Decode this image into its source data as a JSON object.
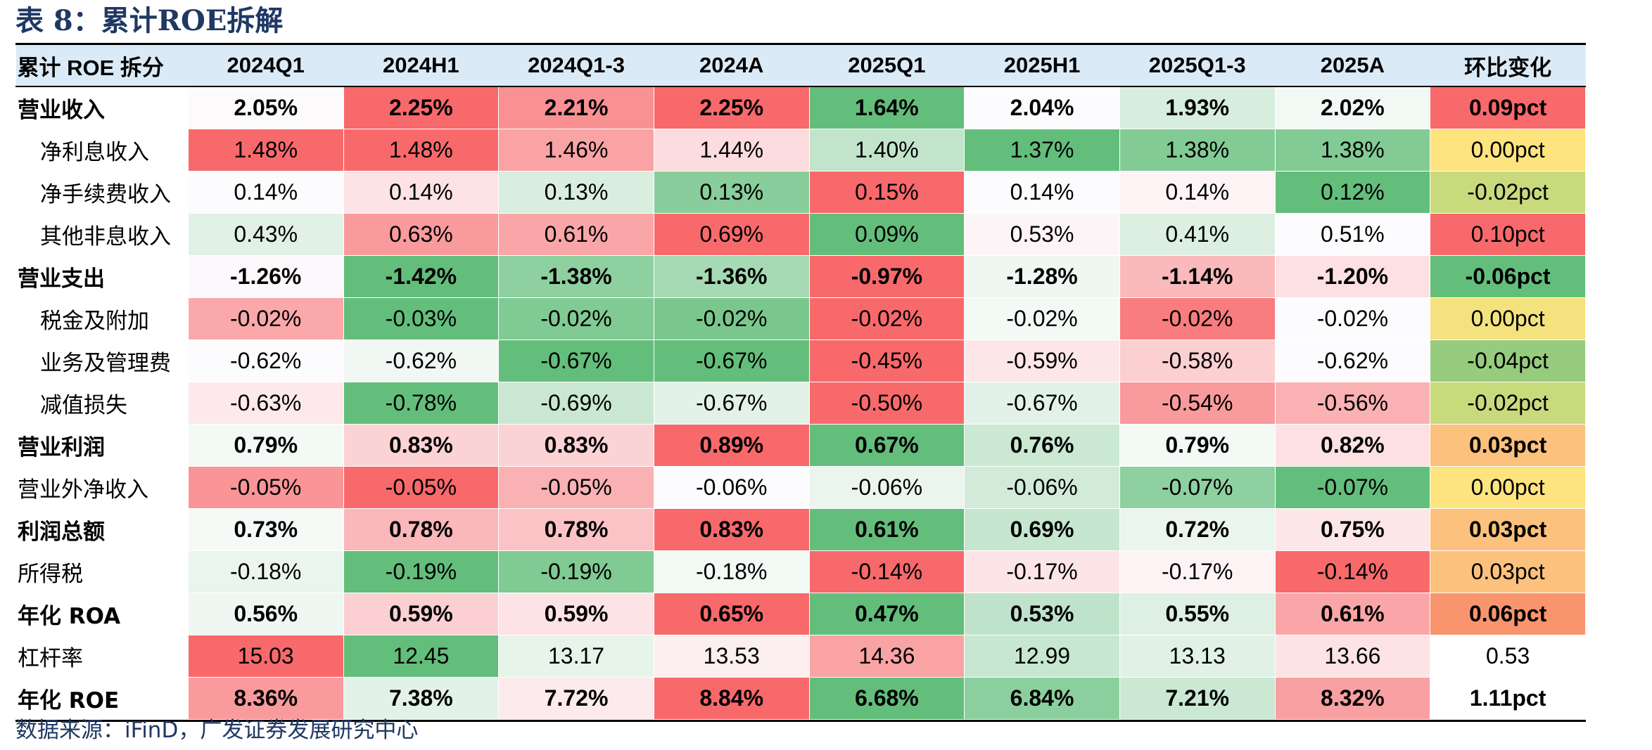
{
  "title": "表 8：累计ROE拆解",
  "header": [
    "累计 ROE 拆分",
    "2024Q1",
    "2024H1",
    "2024Q1-3",
    "2024A",
    "2025Q1",
    "2025H1",
    "2025Q1-3",
    "2025A",
    "环比变化"
  ],
  "rows": [
    {
      "label": "营业收入",
      "bold": true,
      "indent": false,
      "cells": [
        {
          "v": "2.05%",
          "c": "#fdfafb"
        },
        {
          "v": "2.25%",
          "c": "#f8696b"
        },
        {
          "v": "2.21%",
          "c": "#f99193"
        },
        {
          "v": "2.25%",
          "c": "#f8696b"
        },
        {
          "v": "1.64%",
          "c": "#63be7b"
        },
        {
          "v": "2.04%",
          "c": "#fcfcff"
        },
        {
          "v": "1.93%",
          "c": "#d7eddd"
        },
        {
          "v": "2.02%",
          "c": "#f2f8f4"
        },
        {
          "v": "0.09pct",
          "c": "#f8696b"
        }
      ]
    },
    {
      "label": "净利息收入",
      "bold": false,
      "indent": true,
      "cells": [
        {
          "v": "1.48%",
          "c": "#f8696b"
        },
        {
          "v": "1.48%",
          "c": "#f8696b"
        },
        {
          "v": "1.46%",
          "c": "#faa3a5"
        },
        {
          "v": "1.44%",
          "c": "#fcdcde"
        },
        {
          "v": "1.40%",
          "c": "#c1e4cb"
        },
        {
          "v": "1.37%",
          "c": "#63be7b"
        },
        {
          "v": "1.38%",
          "c": "#82cb95"
        },
        {
          "v": "1.38%",
          "c": "#82cb95"
        },
        {
          "v": "0.00pct",
          "c": "#fde47f"
        }
      ]
    },
    {
      "label": "净手续费收入",
      "bold": false,
      "indent": true,
      "cells": [
        {
          "v": "0.14%",
          "c": "#fcfcff"
        },
        {
          "v": "0.14%",
          "c": "#fde3e5"
        },
        {
          "v": "0.13%",
          "c": "#d9eedf"
        },
        {
          "v": "0.13%",
          "c": "#88cd9b"
        },
        {
          "v": "0.15%",
          "c": "#f8696b"
        },
        {
          "v": "0.14%",
          "c": "#fcfcff"
        },
        {
          "v": "0.14%",
          "c": "#fdf3f5"
        },
        {
          "v": "0.12%",
          "c": "#63be7b"
        },
        {
          "v": "-0.02pct",
          "c": "#c9da7d"
        }
      ]
    },
    {
      "label": "其他非息收入",
      "bold": false,
      "indent": true,
      "cells": [
        {
          "v": "0.43%",
          "c": "#e1f1e6"
        },
        {
          "v": "0.63%",
          "c": "#f99a9c"
        },
        {
          "v": "0.61%",
          "c": "#faa6a8"
        },
        {
          "v": "0.69%",
          "c": "#f8696b"
        },
        {
          "v": "0.09%",
          "c": "#63be7b"
        },
        {
          "v": "0.53%",
          "c": "#fcf4f6"
        },
        {
          "v": "0.41%",
          "c": "#dcefe1"
        },
        {
          "v": "0.51%",
          "c": "#fcfcff"
        },
        {
          "v": "0.10pct",
          "c": "#f8696b"
        }
      ]
    },
    {
      "label": "营业支出",
      "bold": true,
      "indent": false,
      "cells": [
        {
          "v": "-1.26%",
          "c": "#fcf8fb"
        },
        {
          "v": "-1.42%",
          "c": "#63be7b"
        },
        {
          "v": "-1.38%",
          "c": "#8ed0a0"
        },
        {
          "v": "-1.36%",
          "c": "#a6dab4"
        },
        {
          "v": "-0.97%",
          "c": "#f8696b"
        },
        {
          "v": "-1.28%",
          "c": "#eff7f2"
        },
        {
          "v": "-1.14%",
          "c": "#fab9bb"
        },
        {
          "v": "-1.20%",
          "c": "#fde0e2"
        },
        {
          "v": "-0.06pct",
          "c": "#63be7b"
        }
      ]
    },
    {
      "label": "税金及附加",
      "bold": false,
      "indent": true,
      "cells": [
        {
          "v": "-0.02%",
          "c": "#faa8aa"
        },
        {
          "v": "-0.03%",
          "c": "#63be7b"
        },
        {
          "v": "-0.02%",
          "c": "#80ca93"
        },
        {
          "v": "-0.02%",
          "c": "#7ac78e"
        },
        {
          "v": "-0.02%",
          "c": "#f8696b"
        },
        {
          "v": "-0.02%",
          "c": "#f3f9f5"
        },
        {
          "v": "-0.02%",
          "c": "#f97c7e"
        },
        {
          "v": "-0.02%",
          "c": "#fcfcff"
        },
        {
          "v": "0.00pct",
          "c": "#f4e27f"
        }
      ]
    },
    {
      "label": "业务及管理费",
      "bold": false,
      "indent": true,
      "cells": [
        {
          "v": "-0.62%",
          "c": "#fcfcff"
        },
        {
          "v": "-0.62%",
          "c": "#f1f8f3"
        },
        {
          "v": "-0.67%",
          "c": "#63be7b"
        },
        {
          "v": "-0.67%",
          "c": "#63be7b"
        },
        {
          "v": "-0.45%",
          "c": "#f8696b"
        },
        {
          "v": "-0.59%",
          "c": "#fde6e8"
        },
        {
          "v": "-0.58%",
          "c": "#fccfd1"
        },
        {
          "v": "-0.62%",
          "c": "#fcfcff"
        },
        {
          "v": "-0.04pct",
          "c": "#97cb7e"
        }
      ]
    },
    {
      "label": "减值损失",
      "bold": false,
      "indent": true,
      "cells": [
        {
          "v": "-0.63%",
          "c": "#fde9eb"
        },
        {
          "v": "-0.78%",
          "c": "#63be7b"
        },
        {
          "v": "-0.69%",
          "c": "#c9e7d1"
        },
        {
          "v": "-0.67%",
          "c": "#e3f2e8"
        },
        {
          "v": "-0.50%",
          "c": "#f8696b"
        },
        {
          "v": "-0.67%",
          "c": "#e3f2e8"
        },
        {
          "v": "-0.54%",
          "c": "#f99a9c"
        },
        {
          "v": "-0.56%",
          "c": "#fab1b3"
        },
        {
          "v": "-0.02pct",
          "c": "#c9da7d"
        }
      ]
    },
    {
      "label": "营业利润",
      "bold": true,
      "indent": false,
      "cells": [
        {
          "v": "0.79%",
          "c": "#f3f9f5"
        },
        {
          "v": "0.83%",
          "c": "#fcd3d5"
        },
        {
          "v": "0.83%",
          "c": "#fcd3d5"
        },
        {
          "v": "0.89%",
          "c": "#f8696b"
        },
        {
          "v": "0.67%",
          "c": "#63be7b"
        },
        {
          "v": "0.76%",
          "c": "#cae8d2"
        },
        {
          "v": "0.79%",
          "c": "#f3f9f5"
        },
        {
          "v": "0.82%",
          "c": "#fde0e2"
        },
        {
          "v": "0.03pct",
          "c": "#fcc17c"
        }
      ]
    },
    {
      "label": "营业外净收入",
      "bold": false,
      "indent": false,
      "cells": [
        {
          "v": "-0.05%",
          "c": "#f99597"
        },
        {
          "v": "-0.05%",
          "c": "#f8696b"
        },
        {
          "v": "-0.05%",
          "c": "#fab1b3"
        },
        {
          "v": "-0.06%",
          "c": "#fcfcff"
        },
        {
          "v": "-0.06%",
          "c": "#eaf5ee"
        },
        {
          "v": "-0.06%",
          "c": "#d2ebd9"
        },
        {
          "v": "-0.07%",
          "c": "#8ed0a0"
        },
        {
          "v": "-0.07%",
          "c": "#63be7b"
        },
        {
          "v": "0.00pct",
          "c": "#fde47f"
        }
      ]
    },
    {
      "label": "利润总额",
      "bold": true,
      "indent": false,
      "cells": [
        {
          "v": "0.73%",
          "c": "#f5faf7"
        },
        {
          "v": "0.78%",
          "c": "#fab8ba"
        },
        {
          "v": "0.78%",
          "c": "#fbc3c5"
        },
        {
          "v": "0.83%",
          "c": "#f8696b"
        },
        {
          "v": "0.61%",
          "c": "#63be7b"
        },
        {
          "v": "0.69%",
          "c": "#c6e6cf"
        },
        {
          "v": "0.72%",
          "c": "#eaf5ee"
        },
        {
          "v": "0.75%",
          "c": "#fde6e8"
        },
        {
          "v": "0.03pct",
          "c": "#fcc17c"
        }
      ]
    },
    {
      "label": "所得税",
      "bold": false,
      "indent": false,
      "cells": [
        {
          "v": "-0.18%",
          "c": "#eaf5ee"
        },
        {
          "v": "-0.19%",
          "c": "#63be7b"
        },
        {
          "v": "-0.19%",
          "c": "#80ca93"
        },
        {
          "v": "-0.18%",
          "c": "#f2f8f4"
        },
        {
          "v": "-0.14%",
          "c": "#f8696b"
        },
        {
          "v": "-0.17%",
          "c": "#fde5e7"
        },
        {
          "v": "-0.17%",
          "c": "#fdf3f5"
        },
        {
          "v": "-0.14%",
          "c": "#f8696b"
        },
        {
          "v": "0.03pct",
          "c": "#fcc17c"
        }
      ]
    },
    {
      "label": "年化 ROA",
      "bold": true,
      "indent": false,
      "cells": [
        {
          "v": "0.56%",
          "c": "#eef7f1"
        },
        {
          "v": "0.59%",
          "c": "#fcd0d2"
        },
        {
          "v": "0.59%",
          "c": "#fde3e5"
        },
        {
          "v": "0.65%",
          "c": "#f8696b"
        },
        {
          "v": "0.47%",
          "c": "#63be7b"
        },
        {
          "v": "0.53%",
          "c": "#bfe3ca"
        },
        {
          "v": "0.55%",
          "c": "#ddf0e3"
        },
        {
          "v": "0.61%",
          "c": "#faa6a8"
        },
        {
          "v": "0.06pct",
          "c": "#f8956e"
        }
      ]
    },
    {
      "label": "杠杆率",
      "bold": false,
      "indent": false,
      "cells": [
        {
          "v": "15.03",
          "c": "#f8696b"
        },
        {
          "v": "12.45",
          "c": "#63be7b"
        },
        {
          "v": "13.17",
          "c": "#e6f4ea"
        },
        {
          "v": "13.53",
          "c": "#fdeef0"
        },
        {
          "v": "14.36",
          "c": "#faa3a5"
        },
        {
          "v": "12.99",
          "c": "#c7e7d0"
        },
        {
          "v": "13.13",
          "c": "#e1f1e6"
        },
        {
          "v": "13.66",
          "c": "#fde3e5"
        },
        {
          "v": "0.53",
          "c": "#ffffff"
        }
      ]
    },
    {
      "label": "年化 ROE",
      "bold": true,
      "indent": false,
      "cells": [
        {
          "v": "8.36%",
          "c": "#f99a9c"
        },
        {
          "v": "7.38%",
          "c": "#e3f2e8"
        },
        {
          "v": "7.72%",
          "c": "#fdeaec"
        },
        {
          "v": "8.84%",
          "c": "#f8696b"
        },
        {
          "v": "6.68%",
          "c": "#63be7b"
        },
        {
          "v": "6.84%",
          "c": "#8ccf9e"
        },
        {
          "v": "7.21%",
          "c": "#cbe8d3"
        },
        {
          "v": "8.32%",
          "c": "#f9a0a2"
        },
        {
          "v": "1.11pct",
          "c": "#ffffff"
        }
      ]
    }
  ],
  "source": "数据来源：iFinD，广发证券发展研究中心"
}
